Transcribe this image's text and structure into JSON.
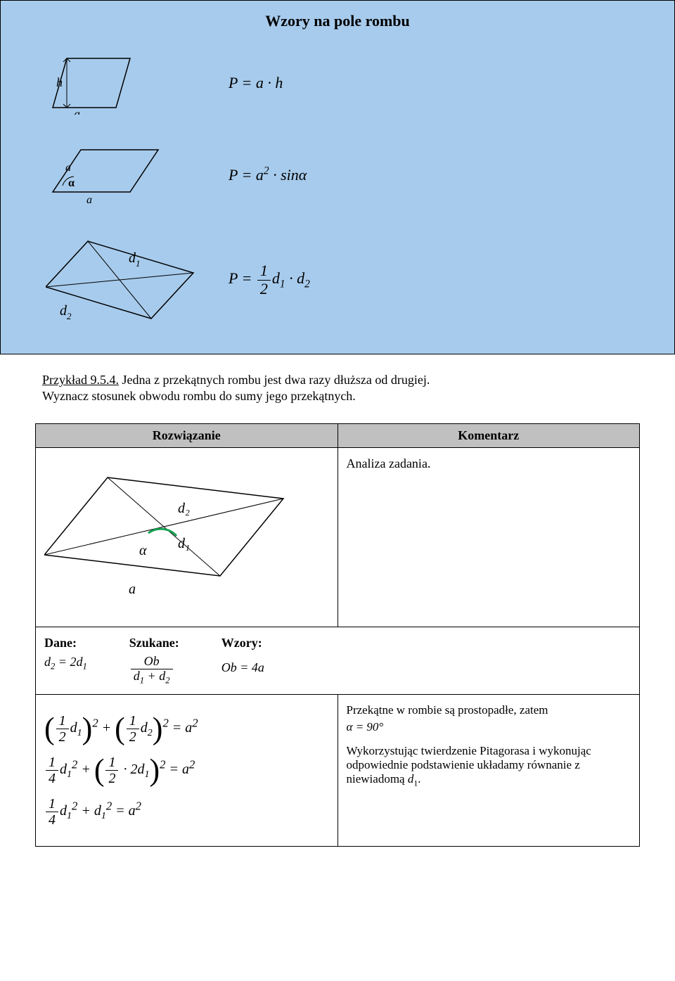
{
  "bluebox": {
    "title": "Wzory na pole rombu",
    "background_color": "#a7cbec",
    "border_color": "#000000",
    "rows": [
      {
        "formula_html": "<span class='math'>P</span> = <span class='math'>a</span> · <span class='math'>h</span>"
      },
      {
        "formula_html": "<span class='math'>P</span> = <span class='math'>a</span><sup>2</sup> · sin<span class='math'>α</span>"
      },
      {
        "formula_html": "<span class='math'>P</span> = <span class='frac'><span class='num'>1</span><span class='den'>2</span></span><span class='math'>d</span><span class='sub'>1</span> · <span class='math'>d</span><span class='sub'>2</span>"
      }
    ],
    "fig1": {
      "label_h": "h",
      "label_a": "a"
    },
    "fig2": {
      "label_a_left": "a",
      "label_a_bottom": "a",
      "label_alpha": "α"
    },
    "fig3": {
      "label_d1": "d",
      "label_d1_sub": "1",
      "label_d2": "d",
      "label_d2_sub": "2"
    }
  },
  "example": {
    "heading": "Przykład 9.5.4.",
    "text1": " Jedna z przekątnych rombu jest dwa razy dłuższa od drugiej.",
    "text2": "Wyznacz stosunek obwodu rombu do sumy jego przekątnych."
  },
  "table": {
    "header_left": "Rozwiązanie",
    "header_right": "Komentarz",
    "header_bg": "#c0c0c0"
  },
  "analysis": {
    "text": "Analiza zadania.",
    "fig": {
      "label_a": "a",
      "label_alpha": "α",
      "label_d1": "d₁",
      "label_d2": "d₂"
    }
  },
  "dane": {
    "dane_label": "Dane:",
    "szukane_label": "Szukane:",
    "wzory_label": "Wzory:",
    "dane_val_html": "<span class='math'>d</span><span class='sub'>2</span> = 2<span class='math'>d</span><span class='sub'>1</span>",
    "szukane_val_html": "<span class='frac'><span class='num'><span class='math'>Ob</span></span><span class='den'><span class='math'>d</span><span class='sub'>1</span> + <span class='math'>d</span><span class='sub'>2</span></span></span>",
    "wzory_val_html": "<span class='math'>Ob</span> = 4<span class='math'>a</span>"
  },
  "steps": {
    "eq1_html": "<span class='big-paren'>(</span><span class='frac'><span class='num'>1</span><span class='den'>2</span></span><span class='math'>d</span><span class='sub'>1</span><span class='big-paren'>)</span><sup>2</sup> + <span class='big-paren'>(</span><span class='frac'><span class='num'>1</span><span class='den'>2</span></span><span class='math'>d</span><span class='sub'>2</span><span class='big-paren'>)</span><sup>2</sup> = <span class='math'>a</span><sup>2</sup>",
    "eq2_html": "<span class='frac'><span class='num'>1</span><span class='den'>4</span></span><span class='math'>d</span><span class='sub'>1</span><sup>2</sup> + <span class='big-paren'>(</span><span class='frac'><span class='num'>1</span><span class='den'>2</span></span> · 2<span class='math'>d</span><span class='sub'>1</span><span class='big-paren'>)</span><sup>2</sup> = <span class='math'>a</span><sup>2</sup>",
    "eq3_html": "<span class='frac'><span class='num'>1</span><span class='den'>4</span></span><span class='math'>d</span><span class='sub'>1</span><sup>2</sup> + <span class='math'>d</span><span class='sub'>1</span><sup>2</sup> = <span class='math'>a</span><sup>2</sup>"
  },
  "commentary": {
    "line1_html": "Przekątne w rombie są prostopadłe, zatem",
    "line_alpha_html": "<span class='math'>α</span> = 90°",
    "line2_html": "Wykorzystując twierdzenie Pitagorasa i wykonując odpowiednie podstawienie układamy równanie z niewiadomą <span class='math'>d</span><span class='sub'>1</span>."
  }
}
